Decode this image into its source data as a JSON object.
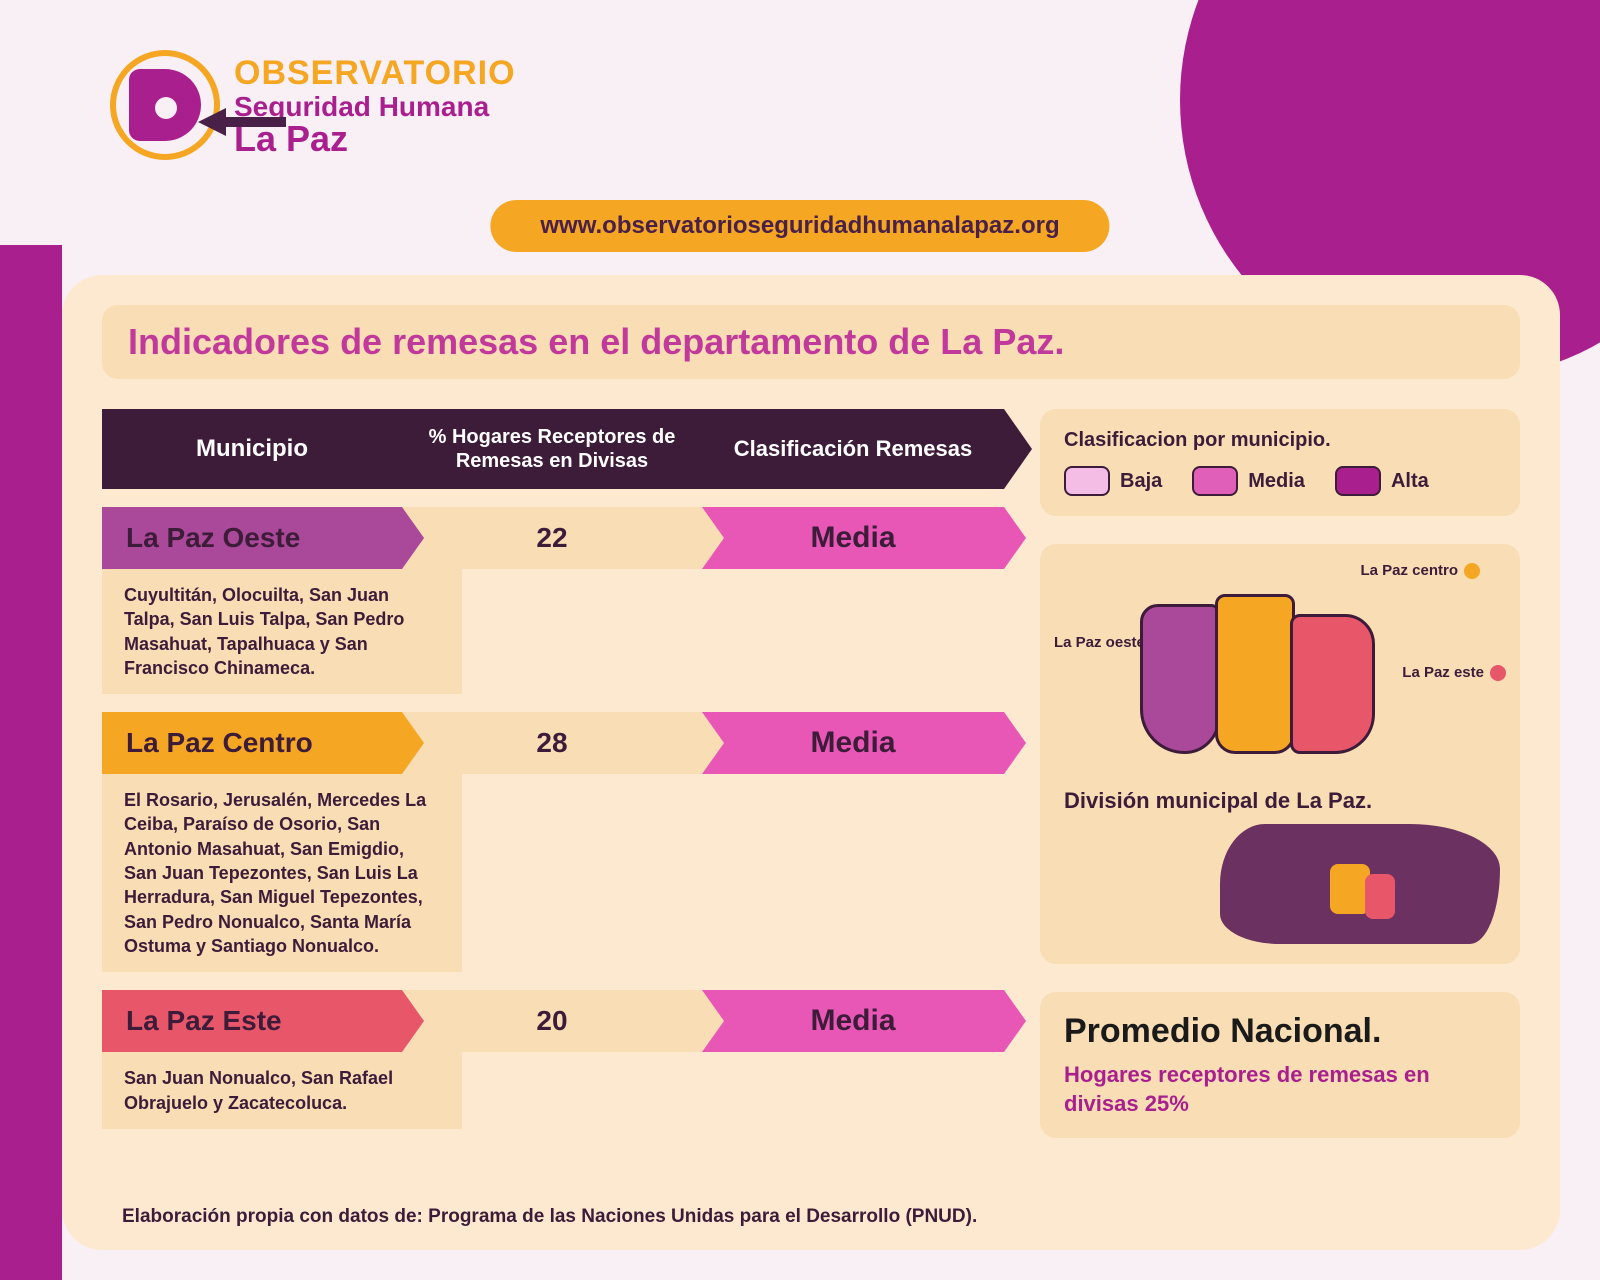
{
  "colors": {
    "brand_purple": "#aa1f8e",
    "brand_orange": "#f5a623",
    "dark_plum": "#3d1c39",
    "pink": "#e857b6",
    "salmon": "#e8566a",
    "mauve": "#aa4899",
    "panel_bg": "#fce9cf",
    "band_bg": "#f8ddb5",
    "page_bg": "#f9f0f6",
    "legend_baja": "#f3bde6",
    "legend_media": "#e05fb9",
    "legend_alta": "#aa1f8e"
  },
  "logo": {
    "line1": "OBSERVATORIO",
    "line2": "Seguridad Humana",
    "line3": "La Paz"
  },
  "url": "www.observatorioseguridadhumanalapaz.org",
  "title": "Indicadores de remesas en el departamento de La Paz.",
  "table": {
    "headers": {
      "col1": "Municipio",
      "col2": "% Hogares Receptores de Remesas en Divisas",
      "col3": "Clasificación Remesas"
    },
    "rows": [
      {
        "name": "La Paz Oeste",
        "name_bg": "#aa4899",
        "name_color": "#3d1c39",
        "pct": "22",
        "classification": "Media",
        "class_bg": "#e857b6",
        "munis": "Cuyultitán, Olocuilta, San Juan Talpa, San Luis Talpa, San Pedro Masahuat, Tapalhuaca y San Francisco Chinameca."
      },
      {
        "name": "La Paz Centro",
        "name_bg": "#f5a623",
        "name_color": "#3d1c39",
        "pct": "28",
        "classification": "Media",
        "class_bg": "#e857b6",
        "munis": "El Rosario, Jerusalén, Mercedes La Ceiba, Paraíso de Osorio, San Antonio Masahuat, San Emigdio, San Juan Tepezontes, San Luis La Herradura, San Miguel Tepezontes, San Pedro Nonualco, Santa María Ostuma y Santiago Nonualco."
      },
      {
        "name": "La Paz Este",
        "name_bg": "#e8566a",
        "name_color": "#3d1c39",
        "pct": "20",
        "classification": "Media",
        "class_bg": "#e857b6",
        "munis": "San Juan Nonualco, San Rafael Obrajuelo y Zacatecoluca."
      }
    ]
  },
  "legend": {
    "title": "Clasificacion por municipio.",
    "items": [
      {
        "label": "Baja",
        "color": "#f3bde6"
      },
      {
        "label": "Media",
        "color": "#e05fb9"
      },
      {
        "label": "Alta",
        "color": "#aa1f8e"
      }
    ]
  },
  "map": {
    "caption": "División municipal de La Paz.",
    "labels": {
      "oeste": "La Paz oeste",
      "centro": "La Paz centro",
      "este": "La Paz este"
    },
    "label_dot_colors": {
      "oeste": "#aa4899",
      "centro": "#f5a623",
      "este": "#e8566a"
    }
  },
  "average": {
    "title": "Promedio Nacional.",
    "subtitle": "Hogares receptores de remesas en divisas 25%"
  },
  "footer": "Elaboración propia con datos de: Programa de las Naciones Unidas para el Desarrollo (PNUD)."
}
